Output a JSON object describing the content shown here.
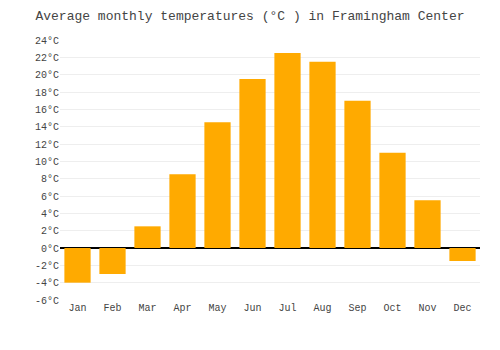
{
  "chart_data": {
    "type": "bar",
    "title": "Average monthly temperatures (°C ) in Framingham Center",
    "categories": [
      "Jan",
      "Feb",
      "Mar",
      "Apr",
      "May",
      "Jun",
      "Jul",
      "Aug",
      "Sep",
      "Oct",
      "Nov",
      "Dec"
    ],
    "values": [
      -4.0,
      -3.0,
      2.5,
      8.5,
      14.5,
      19.5,
      22.5,
      21.5,
      17.0,
      11.0,
      5.5,
      -1.5
    ],
    "color": "#FFAA00",
    "ylim": [
      -6,
      24
    ],
    "yticks": [
      {
        "value": -6,
        "label": "-6°C"
      },
      {
        "value": -4,
        "label": "-4°C"
      },
      {
        "value": -2,
        "label": "-2°C"
      },
      {
        "value": 0,
        "label": "0°C"
      },
      {
        "value": 2,
        "label": "2°C"
      },
      {
        "value": 4,
        "label": "4°C"
      },
      {
        "value": 6,
        "label": "6°C"
      },
      {
        "value": 8,
        "label": "8°C"
      },
      {
        "value": 10,
        "label": "10°C"
      },
      {
        "value": 12,
        "label": "12°C"
      },
      {
        "value": 14,
        "label": "14°C"
      },
      {
        "value": 16,
        "label": "16°C"
      },
      {
        "value": 18,
        "label": "18°C"
      },
      {
        "value": 20,
        "label": "20°C"
      },
      {
        "value": 22,
        "label": "22°C"
      },
      {
        "value": 24,
        "label": "24°C"
      }
    ],
    "grid": true
  }
}
